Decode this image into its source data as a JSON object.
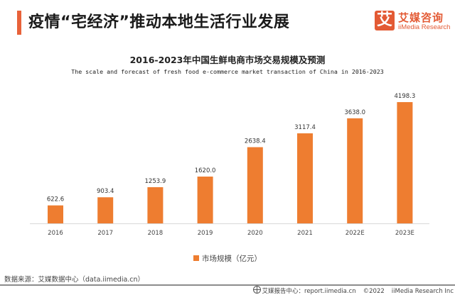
{
  "header": {
    "title": "疫情“宅经济”推动本地生活行业发展",
    "logo": {
      "icon_glyph": "艾",
      "name_cn": "艾媒咨询",
      "name_en": "iiMedia Research"
    }
  },
  "colors": {
    "accent": "#e35a34",
    "bar": "#ee7d30",
    "axis": "#d9d9d9"
  },
  "chart_data": {
    "type": "bar",
    "title": "2016-2023年中国生鲜电商市场交易规模及预测",
    "subtitle": "The scale and forecast of fresh food e-commerce market transaction of China in 2016-2023",
    "categories": [
      "2016",
      "2017",
      "2018",
      "2019",
      "2020",
      "2021",
      "2022E",
      "2023E"
    ],
    "series": [
      {
        "name": "市场规模（亿元）",
        "values": [
          622.6,
          903.4,
          1253.9,
          1620.0,
          2638.4,
          3117.4,
          3638.0,
          4198.3
        ],
        "labels": [
          "622.6",
          "903.4",
          "1253.9",
          "1620.0",
          "2638.4",
          "3117.4",
          "3638.0",
          "4198.3"
        ]
      }
    ],
    "xlabel": "",
    "ylabel": "",
    "ylim": [
      0,
      4198.3
    ],
    "grid": false,
    "y_axis_visible": false,
    "legend_position": "bottom"
  },
  "legend": {
    "label": "市场规模（亿元）"
  },
  "source": "数据来源：艾媒数据中心（data.iimedia.cn）",
  "footer": {
    "report_center": "艾媒报告中心：report.iimedia.cn",
    "copyright": "©2022",
    "company": "iiMedia Research  Inc"
  }
}
